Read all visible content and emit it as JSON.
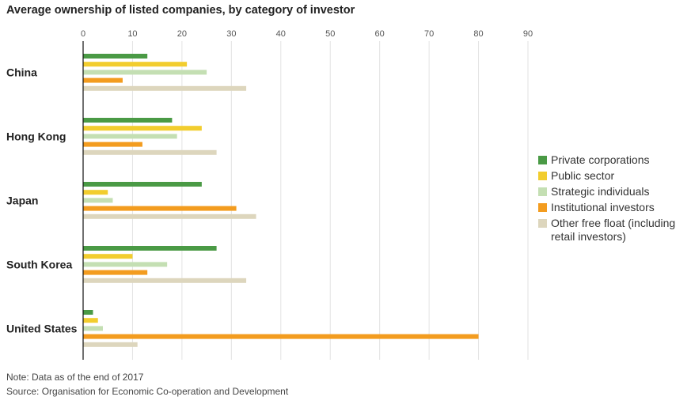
{
  "chart_data": {
    "type": "bar",
    "orientation": "horizontal",
    "title": "Average ownership of listed companies, by category of investor",
    "xlim": [
      0,
      90
    ],
    "xticks": [
      0,
      10,
      20,
      30,
      40,
      50,
      60,
      70,
      80,
      90
    ],
    "categories": [
      "China",
      "Hong Kong",
      "Japan",
      "South Korea",
      "United States"
    ],
    "series": [
      {
        "name": "Private corporations",
        "color": "#4a9a45",
        "values": [
          13,
          18,
          24,
          27,
          2
        ]
      },
      {
        "name": "Public sector",
        "color": "#f2cd2e",
        "values": [
          21,
          24,
          5,
          10,
          3
        ]
      },
      {
        "name": "Strategic individuals",
        "color": "#c4dfb3",
        "values": [
          25,
          19,
          6,
          17,
          4
        ]
      },
      {
        "name": "Institutional investors",
        "color": "#f39c1f",
        "values": [
          8,
          12,
          31,
          13,
          80
        ]
      },
      {
        "name": "Other free float (including retail investors)",
        "color": "#ddd6bd",
        "values": [
          33,
          27,
          35,
          33,
          11
        ]
      }
    ],
    "grid": true,
    "legend": "right"
  },
  "notes": {
    "note": "Note: Data as of the end of 2017",
    "source": "Source: Organisation for Economic Co-operation and Development"
  }
}
